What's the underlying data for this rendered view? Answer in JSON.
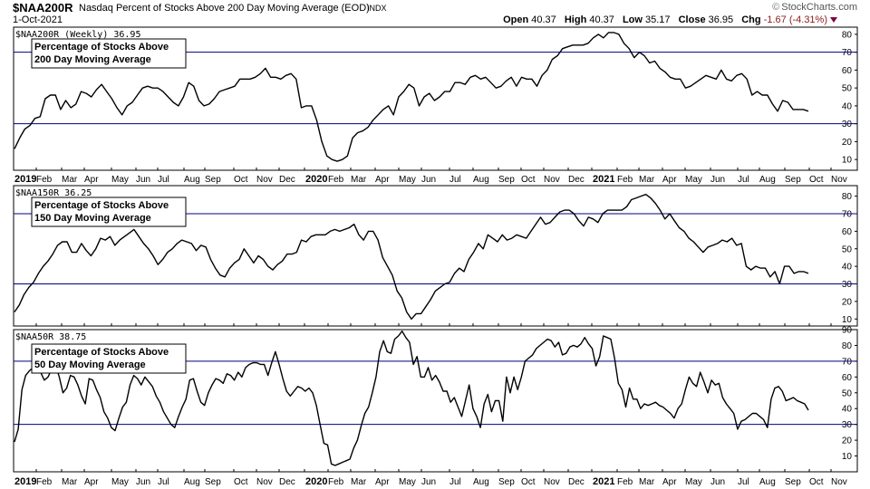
{
  "header": {
    "symbol": "$NAA200R",
    "description": "Nasdaq Percent of Stocks Above 200 Day Moving Average (EOD)",
    "exchange": "INDX",
    "date": "1-Oct-2021",
    "brand": "StockCharts.com",
    "ohlc": {
      "open_label": "Open",
      "open": "40.37",
      "high_label": "High",
      "high": "40.37",
      "low_label": "Low",
      "low": "35.17",
      "close_label": "Close",
      "close": "36.95",
      "chg_label": "Chg",
      "chg": "-1.67 (-4.31%)"
    }
  },
  "chart_data": [
    {
      "type": "line",
      "panel_title": "$NAA200R (Weekly) 36.95",
      "legend_box": [
        "Percentage of Stocks Above",
        "200 Day Moving Average"
      ],
      "ylim": [
        4,
        84
      ],
      "yticks": [
        10,
        20,
        30,
        40,
        50,
        60,
        70,
        80
      ],
      "reference_lines": [
        70,
        30
      ],
      "x_labels": [
        "2019",
        "Feb",
        "Mar",
        "Apr",
        "May",
        "Jun",
        "Jul",
        "Aug",
        "Sep",
        "Oct",
        "Nov",
        "Dec",
        "2020",
        "Feb",
        "Mar",
        "Apr",
        "May",
        "Jun",
        "Jul",
        "Aug",
        "Sep",
        "Oct",
        "Nov",
        "Dec",
        "2021",
        "Feb",
        "Mar",
        "Apr",
        "May",
        "Jun",
        "Jul",
        "Aug",
        "Sep",
        "Oct",
        "Nov"
      ],
      "series": [
        {
          "values": [
            16,
            22,
            27,
            29,
            33,
            34,
            44,
            46,
            46,
            38,
            43,
            39,
            41,
            48,
            47,
            45,
            49,
            52,
            48,
            44,
            39,
            35,
            40,
            42,
            46,
            50,
            51,
            50,
            50,
            48,
            45,
            42,
            40,
            45,
            53,
            51,
            43,
            40,
            41,
            44,
            48,
            49,
            50,
            51,
            55,
            55,
            55,
            56,
            58,
            61,
            56,
            56,
            55,
            57,
            58,
            55,
            39,
            40,
            40,
            32,
            20,
            12,
            10,
            9,
            10,
            12,
            22,
            25,
            26,
            28,
            32,
            35,
            38,
            40,
            35,
            45,
            48,
            52,
            50,
            40,
            45,
            47,
            43,
            45,
            48,
            48,
            53,
            53,
            52,
            56,
            57,
            55,
            56,
            53,
            50,
            51,
            54,
            56,
            51,
            56,
            55,
            55,
            51,
            57,
            60,
            66,
            68,
            72,
            73,
            74,
            74,
            74,
            75,
            78,
            80,
            78,
            81,
            81,
            80,
            75,
            72,
            67,
            70,
            68,
            64,
            65,
            61,
            59,
            56,
            55,
            55,
            50,
            51,
            53,
            55,
            57,
            56,
            55,
            60,
            55,
            54,
            57,
            58,
            55,
            46,
            48,
            46,
            46,
            41,
            37,
            43,
            42,
            38,
            38,
            38,
            37
          ],
          "color": "#000000"
        }
      ]
    },
    {
      "type": "line",
      "panel_title": "$NAA150R 36.25",
      "legend_box": [
        "Percentage of Stocks Above",
        "150 Day Moving Average"
      ],
      "ylim": [
        6,
        86
      ],
      "yticks": [
        10,
        20,
        30,
        40,
        50,
        60,
        70,
        80
      ],
      "reference_lines": [
        70,
        30
      ],
      "x_labels": [],
      "series": [
        {
          "values": [
            14,
            18,
            24,
            28,
            31,
            36,
            40,
            43,
            47,
            52,
            54,
            54,
            48,
            48,
            53,
            49,
            46,
            50,
            56,
            55,
            57,
            52,
            55,
            57,
            59,
            61,
            57,
            53,
            50,
            46,
            41,
            44,
            48,
            50,
            53,
            55,
            54,
            53,
            49,
            52,
            51,
            44,
            39,
            35,
            34,
            39,
            42,
            44,
            50,
            46,
            42,
            46,
            44,
            40,
            38,
            41,
            43,
            47,
            47,
            48,
            55,
            54,
            57,
            58,
            58,
            58,
            60,
            61,
            60,
            61,
            62,
            64,
            58,
            55,
            60,
            60,
            55,
            45,
            40,
            35,
            26,
            22,
            14,
            10,
            13,
            13,
            17,
            21,
            26,
            28,
            30,
            31,
            36,
            39,
            37,
            44,
            48,
            53,
            50,
            58,
            56,
            54,
            58,
            55,
            56,
            58,
            57,
            56,
            60,
            64,
            68,
            64,
            65,
            68,
            71,
            72,
            72,
            70,
            66,
            63,
            68,
            67,
            65,
            70,
            72,
            72,
            72,
            72,
            74,
            78,
            79,
            80,
            81,
            79,
            76,
            72,
            67,
            70,
            66,
            62,
            60,
            56,
            54,
            51,
            48,
            51,
            52,
            53,
            55,
            54,
            56,
            52,
            53,
            40,
            38,
            40,
            39,
            39,
            34,
            37,
            30,
            40,
            40,
            36,
            37,
            37,
            36
          ],
          "color": "#000000"
        }
      ]
    },
    {
      "type": "line",
      "panel_title": "$NAA50R 38.75",
      "legend_box": [
        "Percentage of Stocks Above",
        "50 Day Moving Average"
      ],
      "ylim": [
        0,
        90
      ],
      "yticks": [
        10,
        20,
        30,
        40,
        50,
        60,
        70,
        80,
        90
      ],
      "reference_lines": [
        70,
        30
      ],
      "x_labels": [
        "2019",
        "Feb",
        "Mar",
        "Apr",
        "May",
        "Jun",
        "Jul",
        "Aug",
        "Sep",
        "Oct",
        "Nov",
        "Dec",
        "2020",
        "Feb",
        "Mar",
        "Apr",
        "May",
        "Jun",
        "Jul",
        "Aug",
        "Sep",
        "Oct",
        "Nov",
        "Dec",
        "2021",
        "Feb",
        "Mar",
        "Apr",
        "May",
        "Jun",
        "Jul",
        "Aug",
        "Sep",
        "Oct",
        "Nov"
      ],
      "series": [
        {
          "values": [
            19,
            27,
            52,
            61,
            64,
            66,
            66,
            63,
            58,
            60,
            65,
            68,
            60,
            50,
            53,
            61,
            60,
            55,
            48,
            43,
            59,
            58,
            52,
            47,
            38,
            34,
            28,
            26,
            34,
            41,
            44,
            55,
            61,
            59,
            55,
            60,
            57,
            54,
            48,
            44,
            38,
            34,
            30,
            28,
            35,
            41,
            46,
            58,
            59,
            51,
            44,
            42,
            50,
            55,
            59,
            58,
            56,
            62,
            61,
            58,
            63,
            60,
            66,
            68,
            69,
            69,
            68,
            68,
            61,
            69,
            76,
            68,
            59,
            51,
            48,
            51,
            54,
            53,
            51,
            53,
            50,
            42,
            30,
            18,
            17,
            5,
            4,
            5,
            6,
            7,
            8,
            15,
            20,
            29,
            37,
            41,
            50,
            60,
            76,
            83,
            76,
            75,
            84,
            86,
            89,
            85,
            82,
            68,
            73,
            60,
            60,
            66,
            58,
            61,
            57,
            51,
            51,
            44,
            47,
            41,
            35,
            45,
            55,
            40,
            35,
            28,
            43,
            49,
            38,
            45,
            45,
            32,
            60,
            50,
            60,
            52,
            60,
            70,
            72,
            74,
            78,
            80,
            82,
            84,
            83,
            79,
            82,
            74,
            75,
            79,
            80,
            79,
            81,
            85,
            81,
            78,
            67,
            73,
            86,
            85,
            84,
            72,
            56,
            52,
            41,
            53,
            46,
            46,
            40,
            43,
            42,
            43,
            44,
            42,
            41,
            39,
            37,
            34,
            40,
            43,
            52,
            60,
            56,
            54,
            63,
            57,
            50,
            58,
            55,
            56,
            47,
            43,
            40,
            37,
            27,
            32,
            33,
            35,
            37,
            37,
            35,
            33,
            28,
            46,
            53,
            54,
            51,
            45,
            46,
            47,
            45,
            44,
            43,
            39
          ],
          "color": "#000000"
        }
      ]
    }
  ]
}
